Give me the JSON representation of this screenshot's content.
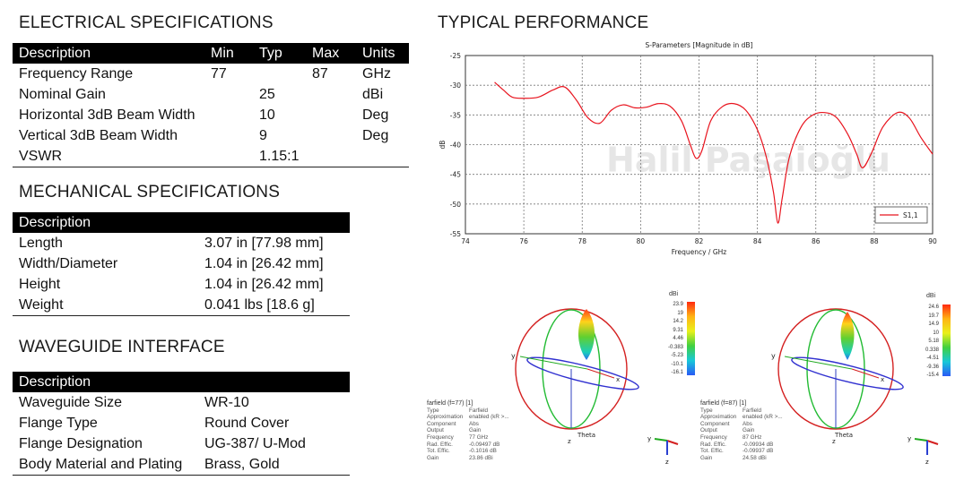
{
  "electrical": {
    "title": "ELECTRICAL SPECIFICATIONS",
    "headers": [
      "Description",
      "Min",
      "Typ",
      "Max",
      "Units"
    ],
    "rows": [
      [
        "Frequency Range",
        "77",
        "",
        "87",
        "GHz"
      ],
      [
        "Nominal Gain",
        "",
        "25",
        "",
        "dBi"
      ],
      [
        "Horizontal 3dB Beam Width",
        "",
        "10",
        "",
        "Deg"
      ],
      [
        "Vertical 3dB Beam Width",
        "",
        "9",
        "",
        "Deg"
      ],
      [
        "VSWR",
        "",
        "1.15:1",
        "",
        ""
      ]
    ]
  },
  "mechanical": {
    "title": "MECHANICAL SPECIFICATIONS",
    "header": "Description",
    "rows": [
      [
        "Length",
        "3.07 in [77.98 mm]"
      ],
      [
        "Width/Diameter",
        "1.04 in [26.42 mm]"
      ],
      [
        "Height",
        "1.04 in [26.42 mm]"
      ],
      [
        "Weight",
        "0.041 lbs [18.6 g]"
      ]
    ]
  },
  "waveguide": {
    "title": "WAVEGUIDE INTERFACE",
    "header": "Description",
    "rows": [
      [
        "Waveguide Size",
        "WR-10"
      ],
      [
        "Flange Type",
        "Round Cover"
      ],
      [
        "Flange Designation",
        "UG-387/ U-Mod"
      ],
      [
        "Body Material and Plating",
        "Brass, Gold"
      ]
    ]
  },
  "performance": {
    "title": "TYPICAL PERFORMANCE",
    "watermark": "Halil Paşaioğlu"
  },
  "chart_data": {
    "type": "line",
    "title": "S-Parameters [Magnitude in dB]",
    "xlabel": "Frequency / GHz",
    "ylabel": "dB",
    "xlim": [
      74,
      90
    ],
    "ylim": [
      -55,
      -25
    ],
    "xticks": [
      74,
      76,
      78,
      80,
      82,
      84,
      86,
      88,
      90
    ],
    "yticks": [
      -25,
      -30,
      -35,
      -40,
      -45,
      -50,
      -55
    ],
    "grid": true,
    "legend_position": "bottom-right",
    "color": "#e8141e",
    "series": [
      {
        "name": "S1,1",
        "x": [
          75,
          75.3,
          75.6,
          76,
          76.5,
          77,
          77.4,
          77.8,
          78.2,
          78.6,
          79,
          79.4,
          79.8,
          80.2,
          80.6,
          81,
          81.4,
          81.7,
          81.9,
          82.1,
          82.4,
          82.8,
          83.2,
          83.6,
          84,
          84.3,
          84.55,
          84.7,
          84.85,
          85.1,
          85.5,
          85.9,
          86.3,
          86.7,
          87.1,
          87.4,
          87.6,
          87.9,
          88.3,
          88.8,
          89.2,
          89.6,
          90
        ],
        "y": [
          -29.5,
          -30.8,
          -32,
          -32.2,
          -32,
          -30.8,
          -30.3,
          -32.5,
          -35.5,
          -36.4,
          -34.2,
          -33.3,
          -33.8,
          -33.7,
          -33.1,
          -33.5,
          -36,
          -40,
          -42.3,
          -41,
          -36,
          -33.6,
          -33.1,
          -34.2,
          -37.5,
          -42,
          -48,
          -53.2,
          -49,
          -42,
          -37,
          -35,
          -34.6,
          -35.4,
          -38.3,
          -41.6,
          -43.9,
          -41.5,
          -37,
          -34.6,
          -35.5,
          -38.8,
          -41.6
        ]
      }
    ]
  },
  "farfields": [
    {
      "scale_label": "dBi",
      "ticks": [
        "23.9",
        "19",
        "14.2",
        "9.31",
        "4.46",
        "-0.383",
        "-5.23",
        "-10.1",
        "-16.1"
      ],
      "title": "farfield (f=77) [1]",
      "props": [
        [
          "Type",
          "Farfield"
        ],
        [
          "Approximation",
          "enabled (kR >..."
        ],
        [
          "Component",
          "Abs"
        ],
        [
          "Output",
          "Gain"
        ],
        [
          "Frequency",
          "77 GHz"
        ],
        [
          "Rad. Effic.",
          "-0.09497 dB"
        ],
        [
          "Tot. Effic.",
          "-0.1016 dB"
        ],
        [
          "Gain",
          "23.86 dBi"
        ]
      ],
      "axes": {
        "x": "x",
        "y": "y",
        "z": "z",
        "theta": "Theta"
      }
    },
    {
      "scale_label": "dBi",
      "ticks": [
        "24.6",
        "19.7",
        "14.9",
        "10",
        "5.18",
        "0.338",
        "-4.51",
        "-9.36",
        "-15.4"
      ],
      "title": "farfield (f=87) [1]",
      "props": [
        [
          "Type",
          "Farfield"
        ],
        [
          "Approximation",
          "enabled (kR >..."
        ],
        [
          "Component",
          "Abs"
        ],
        [
          "Output",
          "Gain"
        ],
        [
          "Frequency",
          "87 GHz"
        ],
        [
          "Rad. Effic.",
          "-0.09934 dB"
        ],
        [
          "Tot. Effic.",
          "-0.09937 dB"
        ],
        [
          "Gain",
          "24.58 dBi"
        ]
      ],
      "axes": {
        "x": "x",
        "y": "y",
        "z": "z",
        "theta": "Theta"
      }
    }
  ]
}
